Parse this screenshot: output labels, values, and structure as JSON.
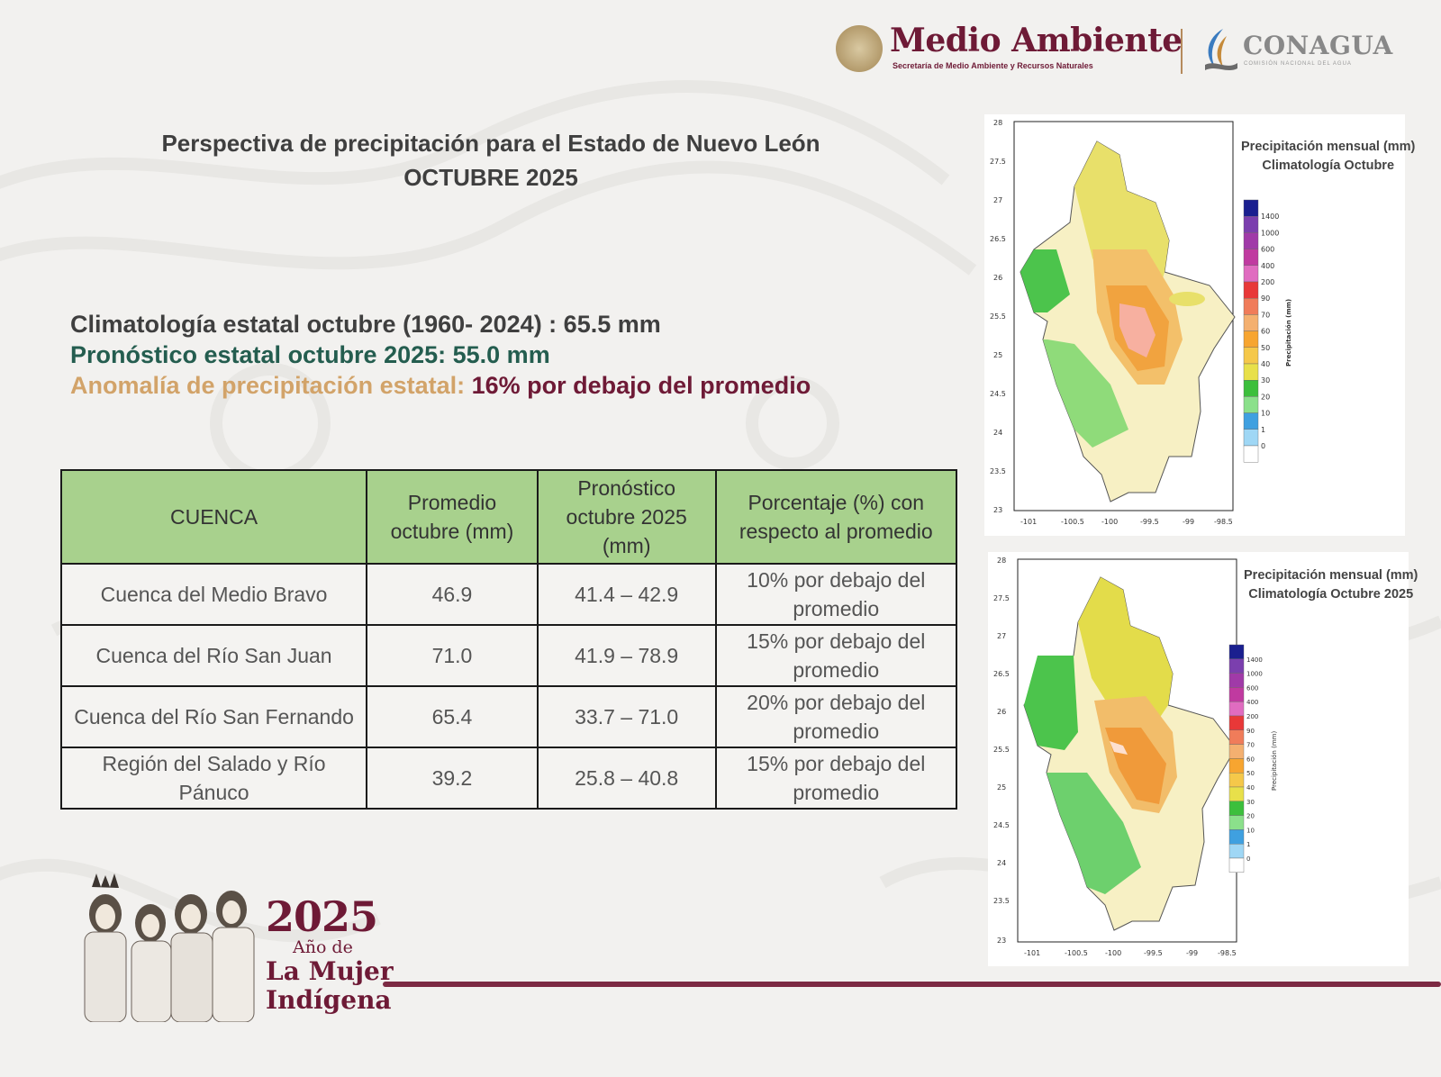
{
  "header": {
    "brand_title": "Medio Ambiente",
    "brand_subtitle": "Secretaría de Medio Ambiente y Recursos Naturales",
    "agency_title": "CONAGUA",
    "agency_subtitle": "COMISIÓN NACIONAL DEL AGUA"
  },
  "title": {
    "line1": "Perspectiva de precipitación para el Estado de Nuevo León",
    "line2": "OCTUBRE 2025"
  },
  "summary": {
    "climatology": "Climatología estatal octubre (1960- 2024) : 65.5 mm",
    "forecast": "Pronóstico estatal octubre 2025: 55.0 mm",
    "anomaly_label": "Anomalía de precipitación estatal: ",
    "anomaly_value": "16% por debajo del promedio"
  },
  "table": {
    "headers": [
      "CUENCA",
      "Promedio octubre (mm)",
      "Pronóstico octubre 2025 (mm)",
      "Porcentaje (%) con respecto al promedio"
    ],
    "rows": [
      [
        "Cuenca del Medio Bravo",
        "46.9",
        "41.4 – 42.9",
        "10% por debajo del promedio"
      ],
      [
        "Cuenca del Río San Juan",
        "71.0",
        "41.9 – 78.9",
        "15% por debajo del promedio"
      ],
      [
        "Cuenca del Río San Fernando",
        "65.4",
        "33.7 – 71.0",
        "20% por debajo del promedio"
      ],
      [
        "Región del Salado y Río Pánuco",
        "39.2",
        "25.8 – 40.8",
        "15% por debajo del promedio"
      ]
    ]
  },
  "maps": [
    {
      "title_line1": "Precipitación mensual (mm)",
      "title_line2": "Climatología  Octubre",
      "axis_ylabel": "Precipitación (mm)",
      "xticks": [
        "-101",
        "-100.5",
        "-100",
        "-99.5",
        "-99",
        "-98.5"
      ],
      "yticks": [
        "28",
        "27.5",
        "27",
        "26.5",
        "26",
        "25.5",
        "25",
        "24.5",
        "24",
        "23.5",
        "23"
      ],
      "legend_values": [
        "1400",
        "1000",
        "600",
        "400",
        "200",
        "90",
        "70",
        "60",
        "50",
        "40",
        "30",
        "20",
        "10",
        "1",
        "0"
      ]
    },
    {
      "title_line1": "Precipitación mensual (mm)",
      "title_line2": "Climatología Octubre 2025",
      "axis_ylabel": "Precipitación (mm)",
      "xticks": [
        "-101",
        "-100.5",
        "-100",
        "-99.5",
        "-99",
        "-98.5"
      ],
      "yticks": [
        "28",
        "27.5",
        "27",
        "26.5",
        "26",
        "25.5",
        "25",
        "24.5",
        "24",
        "23.5",
        "23"
      ],
      "legend_values": [
        "1400",
        "1000",
        "600",
        "400",
        "200",
        "90",
        "70",
        "60",
        "50",
        "40",
        "30",
        "20",
        "10",
        "1",
        "0"
      ]
    }
  ],
  "legend_colors": [
    "#1a1f8f",
    "#7b3fae",
    "#a03aa8",
    "#c03aa0",
    "#e06cc0",
    "#e83838",
    "#f07c5a",
    "#f4b070",
    "#f7a530",
    "#f5c84a",
    "#e8e04a",
    "#3cbf3c",
    "#8be08b",
    "#3fa0e0",
    "#9fd7f5",
    "#ffffff"
  ],
  "footer": {
    "year": "2025",
    "ano_de": "Año de",
    "line1": "La Mujer",
    "line2": "Indígena"
  }
}
